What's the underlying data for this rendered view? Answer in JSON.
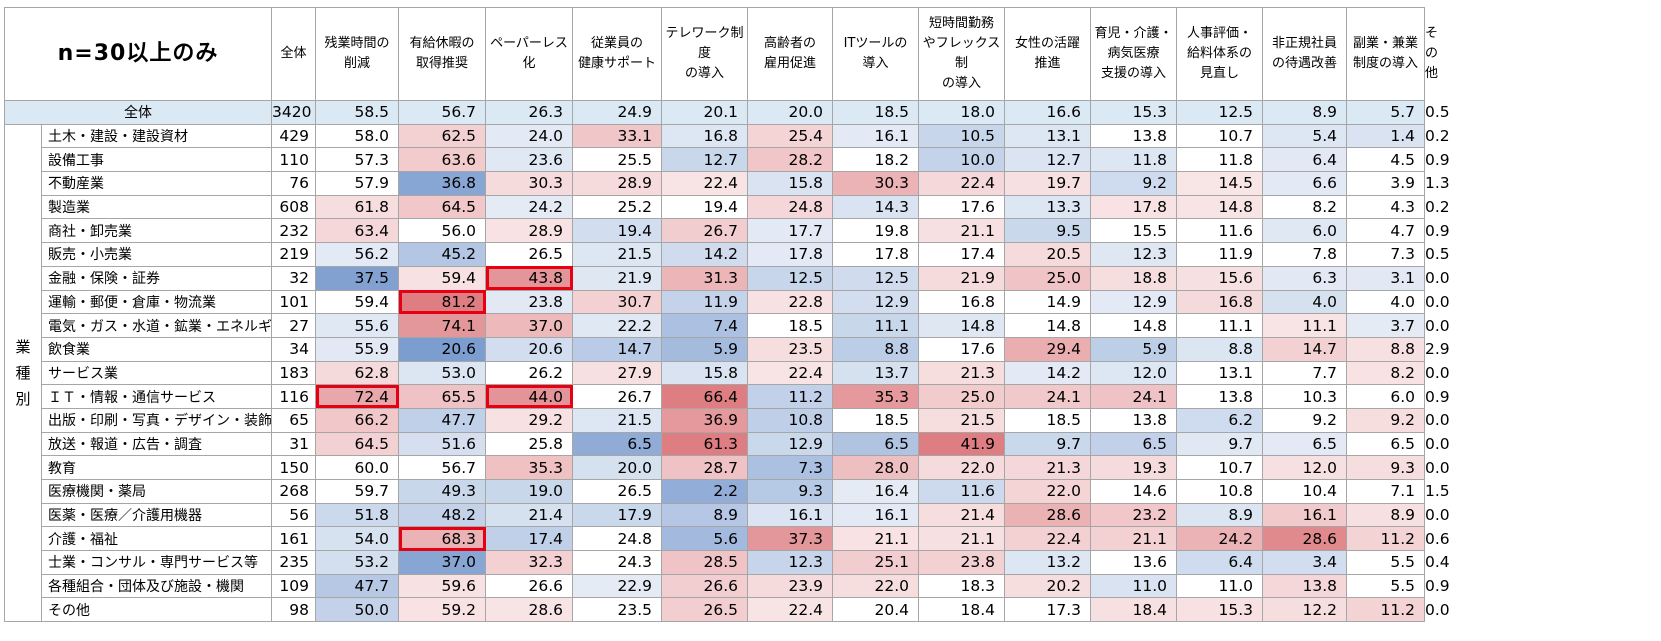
{
  "title": "n=30以上のみ",
  "columns": [
    "全体",
    "残業時間の\n削減",
    "有給休暇の\n取得推奨",
    "ペーパーレス\n化",
    "従業員の\n健康サポート",
    "テレワーク制度\nの導入",
    "高齢者の\n雇用促進",
    "ITツールの\n導入",
    "短時間勤務\nやフレックス制\nの導入",
    "女性の活躍\n推進",
    "育児・介護・\n病気医療\n支援の導入",
    "人事評価・\n給料体系の\n見直し",
    "非正規社員\nの待遇改善",
    "副業・兼業\n制度の導入",
    "その他"
  ],
  "group_label": "業\n種\n別",
  "total_row": {
    "label": "全体",
    "n": "3420",
    "values": [
      "58.5",
      "56.7",
      "26.3",
      "24.9",
      "20.1",
      "20.0",
      "18.5",
      "18.0",
      "16.6",
      "15.3",
      "12.5",
      "8.9",
      "5.7",
      "0.5"
    ]
  },
  "rows": [
    {
      "label": "土木・建設・建設資材",
      "n": "429",
      "values": [
        "58.0",
        "62.5",
        "24.0",
        "33.1",
        "16.8",
        "25.4",
        "16.1",
        "10.5",
        "13.1",
        "13.8",
        "10.7",
        "5.4",
        "1.4",
        "0.2"
      ]
    },
    {
      "label": "設備工事",
      "n": "110",
      "values": [
        "57.3",
        "63.6",
        "23.6",
        "25.5",
        "12.7",
        "28.2",
        "18.2",
        "10.0",
        "12.7",
        "11.8",
        "11.8",
        "6.4",
        "4.5",
        "0.9"
      ]
    },
    {
      "label": "不動産業",
      "n": "76",
      "values": [
        "57.9",
        "36.8",
        "30.3",
        "28.9",
        "22.4",
        "15.8",
        "30.3",
        "22.4",
        "19.7",
        "9.2",
        "14.5",
        "6.6",
        "3.9",
        "1.3"
      ]
    },
    {
      "label": "製造業",
      "n": "608",
      "values": [
        "61.8",
        "64.5",
        "24.2",
        "25.2",
        "19.4",
        "24.8",
        "14.3",
        "17.6",
        "13.3",
        "17.8",
        "14.8",
        "8.2",
        "4.3",
        "0.2"
      ]
    },
    {
      "label": "商社・卸売業",
      "n": "232",
      "values": [
        "63.4",
        "56.0",
        "28.9",
        "19.4",
        "26.7",
        "17.7",
        "19.8",
        "21.1",
        "9.5",
        "15.5",
        "11.6",
        "6.0",
        "4.7",
        "0.9"
      ]
    },
    {
      "label": "販売・小売業",
      "n": "219",
      "values": [
        "56.2",
        "45.2",
        "26.5",
        "21.5",
        "14.2",
        "17.8",
        "17.8",
        "17.4",
        "20.5",
        "12.3",
        "11.9",
        "7.8",
        "7.3",
        "0.5"
      ]
    },
    {
      "label": "金融・保険・証券",
      "n": "32",
      "values": [
        "37.5",
        "59.4",
        "43.8",
        "21.9",
        "31.3",
        "12.5",
        "12.5",
        "21.9",
        "25.0",
        "18.8",
        "15.6",
        "6.3",
        "3.1",
        "0.0"
      ]
    },
    {
      "label": "運輸・郵便・倉庫・物流業",
      "n": "101",
      "values": [
        "59.4",
        "81.2",
        "23.8",
        "30.7",
        "11.9",
        "22.8",
        "12.9",
        "16.8",
        "14.9",
        "12.9",
        "16.8",
        "4.0",
        "4.0",
        "0.0"
      ]
    },
    {
      "label": "電気・ガス・水道・鉱業・エネルギー",
      "n": "27",
      "values": [
        "55.6",
        "74.1",
        "37.0",
        "22.2",
        "7.4",
        "18.5",
        "11.1",
        "14.8",
        "14.8",
        "14.8",
        "11.1",
        "11.1",
        "3.7",
        "0.0"
      ]
    },
    {
      "label": "飲食業",
      "n": "34",
      "values": [
        "55.9",
        "20.6",
        "20.6",
        "14.7",
        "5.9",
        "23.5",
        "8.8",
        "17.6",
        "29.4",
        "5.9",
        "8.8",
        "14.7",
        "8.8",
        "2.9"
      ]
    },
    {
      "label": "サービス業",
      "n": "183",
      "values": [
        "62.8",
        "53.0",
        "26.2",
        "27.9",
        "15.8",
        "22.4",
        "13.7",
        "21.3",
        "14.2",
        "12.0",
        "13.1",
        "7.7",
        "8.2",
        "0.0"
      ]
    },
    {
      "label": "ＩＴ・情報・通信サービス",
      "n": "116",
      "values": [
        "72.4",
        "65.5",
        "44.0",
        "26.7",
        "66.4",
        "11.2",
        "35.3",
        "25.0",
        "24.1",
        "24.1",
        "13.8",
        "10.3",
        "6.0",
        "0.9"
      ]
    },
    {
      "label": "出版・印刷・写真・デザイン・装飾",
      "n": "65",
      "values": [
        "66.2",
        "47.7",
        "29.2",
        "21.5",
        "36.9",
        "10.8",
        "18.5",
        "21.5",
        "18.5",
        "13.8",
        "6.2",
        "9.2",
        "9.2",
        "0.0"
      ]
    },
    {
      "label": "放送・報道・広告・調査",
      "n": "31",
      "values": [
        "64.5",
        "51.6",
        "25.8",
        "6.5",
        "61.3",
        "12.9",
        "6.5",
        "41.9",
        "9.7",
        "6.5",
        "9.7",
        "6.5",
        "6.5",
        "0.0"
      ]
    },
    {
      "label": "教育",
      "n": "150",
      "values": [
        "60.0",
        "56.7",
        "35.3",
        "20.0",
        "28.7",
        "7.3",
        "28.0",
        "22.0",
        "21.3",
        "19.3",
        "10.7",
        "12.0",
        "9.3",
        "0.0"
      ]
    },
    {
      "label": "医療機関・薬局",
      "n": "268",
      "values": [
        "59.7",
        "49.3",
        "19.0",
        "26.5",
        "2.2",
        "9.3",
        "16.4",
        "11.6",
        "22.0",
        "14.6",
        "10.8",
        "10.4",
        "7.1",
        "1.5"
      ]
    },
    {
      "label": "医薬・医療／介護用機器",
      "n": "56",
      "values": [
        "51.8",
        "48.2",
        "21.4",
        "17.9",
        "8.9",
        "16.1",
        "16.1",
        "21.4",
        "28.6",
        "23.2",
        "8.9",
        "16.1",
        "8.9",
        "0.0"
      ]
    },
    {
      "label": "介護・福祉",
      "n": "161",
      "values": [
        "54.0",
        "68.3",
        "17.4",
        "24.8",
        "5.6",
        "37.3",
        "21.1",
        "21.1",
        "22.4",
        "21.1",
        "24.2",
        "28.6",
        "11.2",
        "0.6"
      ]
    },
    {
      "label": "士業・コンサル・専門サービス等",
      "n": "235",
      "values": [
        "53.2",
        "37.0",
        "32.3",
        "24.3",
        "28.5",
        "12.3",
        "25.1",
        "23.8",
        "13.2",
        "13.6",
        "6.4",
        "3.4",
        "5.5",
        "0.4"
      ]
    },
    {
      "label": "各種組合・団体及び施設・機関",
      "n": "109",
      "values": [
        "47.7",
        "59.6",
        "26.6",
        "22.9",
        "26.6",
        "23.9",
        "22.0",
        "18.3",
        "20.2",
        "11.0",
        "11.0",
        "13.8",
        "5.5",
        "0.9"
      ]
    },
    {
      "label": "その他",
      "n": "98",
      "values": [
        "50.0",
        "59.2",
        "28.6",
        "23.5",
        "26.5",
        "22.4",
        "20.4",
        "18.4",
        "17.3",
        "18.4",
        "15.3",
        "12.2",
        "11.2",
        "0.0"
      ]
    }
  ],
  "chart_data": {
    "type": "table",
    "color_scheme": {
      "above_total": "#e07b7f",
      "below_total": "#6f93c8"
    },
    "highlighted_cells": [
      {
        "row": "金融・保険・証券",
        "column": "ペーパーレス\n化"
      },
      {
        "row": "運輸・郵便・倉庫・物流業",
        "column": "有給休暇の\n取得推奨"
      },
      {
        "row": "ＩＴ・情報・通信サービス",
        "column": "残業時間の\n削減"
      },
      {
        "row": "ＩＴ・情報・通信サービス",
        "column": "ペーパーレス\n化"
      },
      {
        "row": "介護・福祉",
        "column": "有給休暇の\n取得推奨"
      }
    ],
    "highlight_color": "#e60012"
  }
}
